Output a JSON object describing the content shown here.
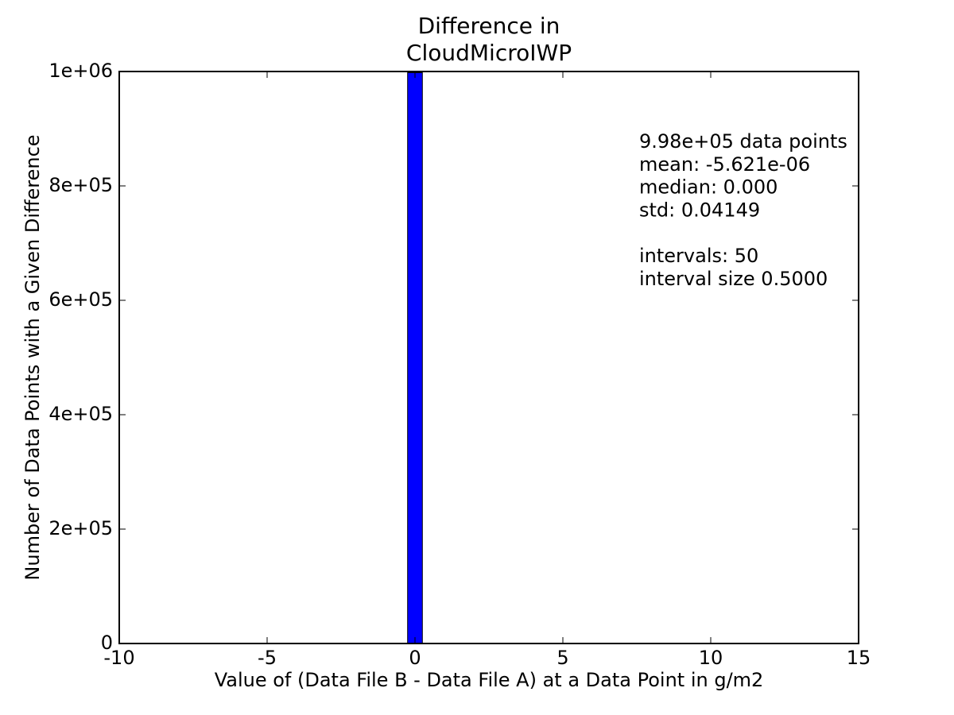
{
  "chart_data": {
    "type": "histogram",
    "title": [
      "Difference in",
      "CloudMicroIWP"
    ],
    "xlabel": "Value of (Data File B - Data File A) at a Data Point in g/m2",
    "ylabel": "Number of Data Points with a Given Difference",
    "annotations": [
      "9.98e+05 data points",
      "mean: -5.621e-06",
      "median: 0.000",
      "std: 0.04149",
      "intervals: 50",
      "interval size 0.5000"
    ],
    "bins": [
      -10.25,
      -9.75,
      -9.25,
      -8.75,
      -8.25,
      -7.75,
      -7.25,
      -6.75,
      -6.25,
      -5.75,
      -5.25,
      -4.75,
      -4.25,
      -3.75,
      -3.25,
      -2.75,
      -2.25,
      -1.75,
      -1.25,
      -0.75,
      -0.25,
      0.25,
      0.75,
      1.25,
      1.75,
      2.25,
      2.75,
      3.25,
      3.75,
      4.25,
      4.75,
      5.25,
      5.75,
      6.25,
      6.75,
      7.25,
      7.75,
      8.25,
      8.75,
      9.25,
      9.75,
      10.25,
      10.75,
      11.25,
      11.75,
      12.25,
      12.75,
      13.25,
      13.75,
      14.25,
      14.75
    ],
    "values": [
      0,
      0,
      0,
      0,
      0,
      0,
      0,
      0,
      0,
      0,
      0,
      0,
      0,
      0,
      0,
      0,
      0,
      0,
      0,
      0,
      998000,
      0,
      0,
      0,
      0,
      0,
      0,
      0,
      0,
      0,
      0,
      0,
      0,
      0,
      0,
      0,
      0,
      0,
      0,
      0,
      0,
      0,
      0,
      0,
      0,
      0,
      0,
      0,
      0,
      0
    ],
    "color": "#0000ff",
    "xlim": [
      -10,
      15
    ],
    "xticks": [
      -10,
      -5,
      0,
      5,
      10,
      15
    ],
    "ylim": [
      0,
      1000000
    ],
    "yticks": [
      0,
      {
        "value": 200000,
        "label": "2e+05"
      },
      {
        "value": 400000,
        "label": "4e+05"
      },
      {
        "value": 600000,
        "label": "6e+05"
      },
      {
        "value": 800000,
        "label": "8e+05"
      },
      {
        "value": 1000000,
        "label": "1e+06"
      }
    ]
  }
}
